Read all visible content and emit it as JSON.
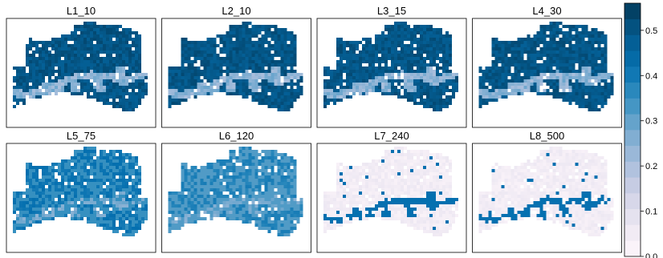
{
  "chart_data": {
    "type": "heatmap",
    "panels": [
      {
        "title": "L1_10",
        "level": 0.53
      },
      {
        "title": "L2_10",
        "level": 0.53
      },
      {
        "title": "L3_15",
        "level": 0.53
      },
      {
        "title": "L4_30",
        "level": 0.53
      },
      {
        "title": "L5_75",
        "level": 0.43
      },
      {
        "title": "L6_120",
        "level": 0.4
      },
      {
        "title": "L7_240",
        "level": 0.06
      },
      {
        "title": "L8_500",
        "level": 0.04
      }
    ],
    "colorbar": {
      "range": [
        0,
        0.56
      ],
      "ticks": [
        0.0,
        0.1,
        0.2,
        0.3,
        0.4,
        0.5
      ],
      "tick_labels": [
        "0.0",
        "0.1",
        "0.2",
        "0.3",
        "0.4",
        "0.5"
      ],
      "palette": [
        "#fff7fb",
        "#ece7f2",
        "#d0d1e6",
        "#a6bddb",
        "#74a9cf",
        "#3690c0",
        "#0570b0",
        "#045a8d",
        "#023858"
      ]
    },
    "grid": false,
    "legend_position": "right"
  }
}
